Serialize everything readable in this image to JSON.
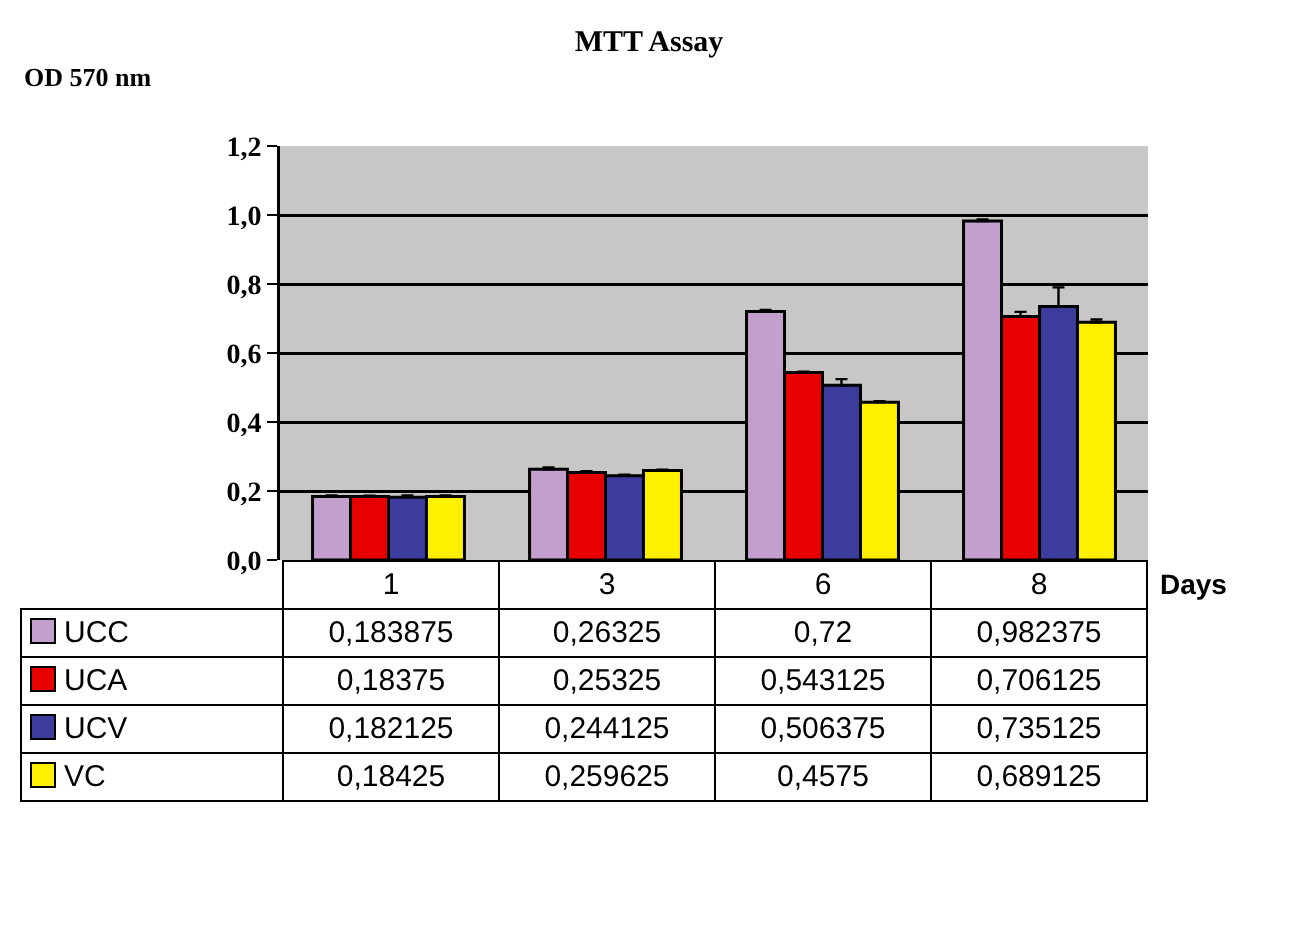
{
  "chart_data": {
    "type": "bar",
    "title": "MTT Assay",
    "ylabel": "OD 570 nm",
    "xlabel": "Days",
    "categories": [
      "1",
      "3",
      "6",
      "8"
    ],
    "ylim": [
      0,
      1.2
    ],
    "yticks": [
      {
        "value": 0,
        "label": "0,0"
      },
      {
        "value": 0.2,
        "label": "0,2"
      },
      {
        "value": 0.4,
        "label": "0,4"
      },
      {
        "value": 0.6,
        "label": "0,6"
      },
      {
        "value": 0.8,
        "label": "0,8"
      },
      {
        "value": 1.0,
        "label": "1,0"
      },
      {
        "value": 1.2,
        "label": "1,2"
      }
    ],
    "grid": "y",
    "legend": "bottom",
    "series": [
      {
        "name": "UCC",
        "color": "#c39fce",
        "values": [
          0.183875,
          0.26325,
          0.72,
          0.982375
        ],
        "value_labels": [
          "0,183875",
          "0,26325",
          "0,72",
          "0,982375"
        ],
        "errors": [
          0.003,
          0.005,
          0.005,
          0.005
        ]
      },
      {
        "name": "UCA",
        "color": "#e80000",
        "values": [
          0.18375,
          0.25325,
          0.543125,
          0.706125
        ],
        "value_labels": [
          "0,18375",
          "0,25325",
          "0,543125",
          "0,706125"
        ],
        "errors": [
          0.003,
          0.004,
          0.003,
          0.013
        ]
      },
      {
        "name": "UCV",
        "color": "#3c3c9c",
        "values": [
          0.182125,
          0.244125,
          0.506375,
          0.735125
        ],
        "value_labels": [
          "0,182125",
          "0,244125",
          "0,506375",
          "0,735125"
        ],
        "errors": [
          0.005,
          0.003,
          0.018,
          0.055
        ]
      },
      {
        "name": "VC",
        "color": "#fff000",
        "values": [
          0.18425,
          0.259625,
          0.4575,
          0.689125
        ],
        "value_labels": [
          "0,18425",
          "0,259625",
          "0,4575",
          "0,689125"
        ],
        "errors": [
          0.003,
          0.002,
          0.003,
          0.008
        ]
      }
    ]
  }
}
